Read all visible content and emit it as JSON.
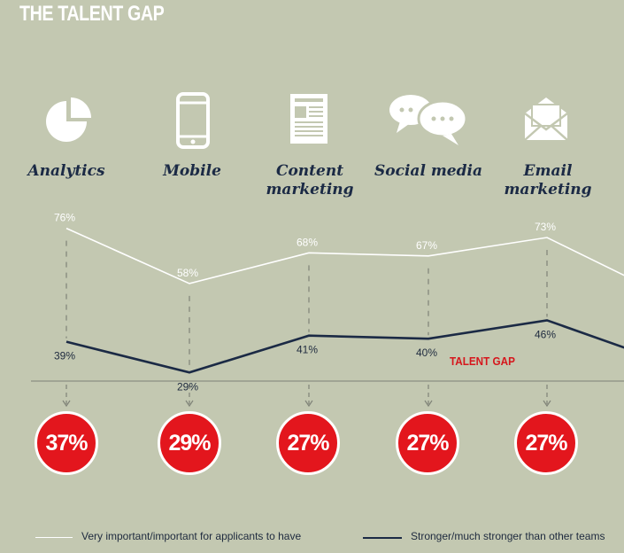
{
  "title": "THE TALENT GAP",
  "colors": {
    "background": "#c3c8b1",
    "series_important": "#ffffff",
    "series_stronger": "#1b2a45",
    "gap_red": "#e3161d"
  },
  "chart_data": {
    "type": "line",
    "categories": [
      "Analytics",
      "Mobile",
      "Content marketing",
      "Social media",
      "Email marketing"
    ],
    "category_lines": [
      [
        "Analytics"
      ],
      [
        "Mobile"
      ],
      [
        "Content",
        "marketing"
      ],
      [
        "Social media"
      ],
      [
        "Email",
        "marketing"
      ]
    ],
    "icons": [
      "pie-chart-icon",
      "smartphone-icon",
      "newspaper-icon",
      "speech-bubbles-icon",
      "envelope-icon"
    ],
    "series": [
      {
        "name": "Very important/important for applicants to have",
        "values": [
          76,
          58,
          68,
          67,
          73
        ],
        "labels": [
          "76%",
          "58%",
          "68%",
          "67%",
          "73%"
        ]
      },
      {
        "name": "Stronger/much stronger than other teams",
        "values": [
          39,
          29,
          41,
          40,
          46
        ],
        "labels": [
          "39%",
          "29%",
          "41%",
          "40%",
          "46%"
        ]
      }
    ],
    "gap_title": "TALENT GAP",
    "gap_values": [
      37,
      29,
      27,
      27,
      27
    ],
    "gap_labels": [
      "37%",
      "29%",
      "27%",
      "27%",
      "27%"
    ],
    "unit": "%"
  },
  "legend": {
    "important": "Very important/important for applicants to have",
    "stronger": "Stronger/much stronger than other teams"
  }
}
